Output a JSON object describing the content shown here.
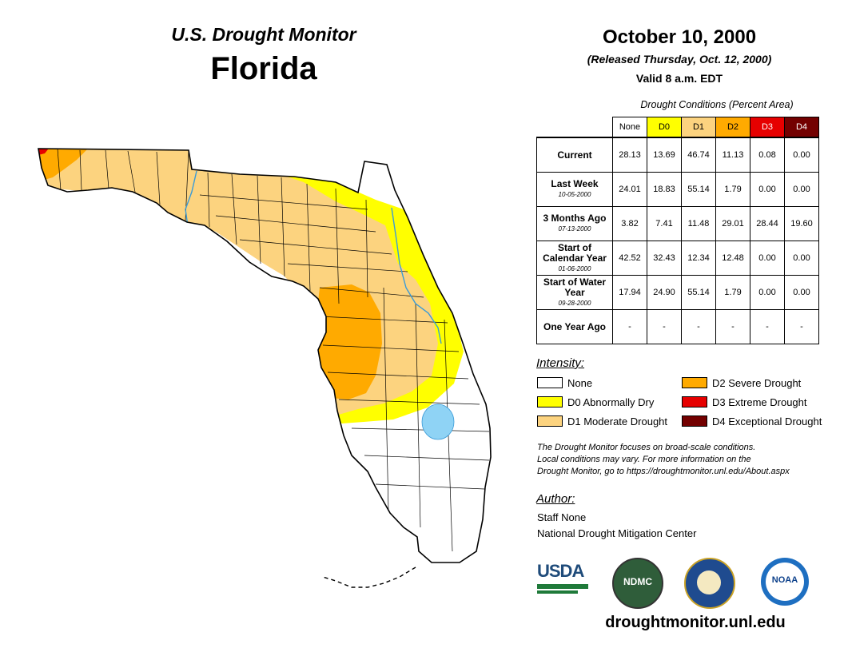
{
  "header": {
    "subtitle": "U.S. Drought Monitor",
    "state": "Florida",
    "date": "October 10, 2000",
    "released": "(Released Thursday, Oct. 12, 2000)",
    "valid": "Valid 8 a.m. EDT"
  },
  "table": {
    "caption": "Drought Conditions (Percent Area)",
    "columns": [
      "None",
      "D0",
      "D1",
      "D2",
      "D3",
      "D4"
    ],
    "rows": [
      {
        "label": "Current",
        "date": "",
        "values": [
          "28.13",
          "13.69",
          "46.74",
          "11.13",
          "0.08",
          "0.00"
        ]
      },
      {
        "label": "Last Week",
        "date": "10-05-2000",
        "values": [
          "24.01",
          "18.83",
          "55.14",
          "1.79",
          "0.00",
          "0.00"
        ]
      },
      {
        "label": "3 Months Ago",
        "date": "07-13-2000",
        "values": [
          "3.82",
          "7.41",
          "11.48",
          "29.01",
          "28.44",
          "19.60"
        ]
      },
      {
        "label": "Start of Calendar Year",
        "date": "01-06-2000",
        "values": [
          "42.52",
          "32.43",
          "12.34",
          "12.48",
          "0.00",
          "0.00"
        ]
      },
      {
        "label": "Start of Water Year",
        "date": "09-28-2000",
        "values": [
          "17.94",
          "24.90",
          "55.14",
          "1.79",
          "0.00",
          "0.00"
        ]
      },
      {
        "label": "One Year Ago",
        "date": "",
        "values": [
          "-",
          "-",
          "-",
          "-",
          "-",
          "-"
        ]
      }
    ]
  },
  "legend": {
    "title": "Intensity:",
    "items": [
      {
        "label": "None",
        "color": "#ffffff"
      },
      {
        "label": "D0 Abnormally Dry",
        "color": "#ffff00"
      },
      {
        "label": "D1 Moderate Drought",
        "color": "#fcd37f"
      },
      {
        "label": "D2 Severe Drought",
        "color": "#ffaa00"
      },
      {
        "label": "D3 Extreme Drought",
        "color": "#e60000"
      },
      {
        "label": "D4 Exceptional Drought",
        "color": "#730000"
      }
    ]
  },
  "note": {
    "line1": "The Drought Monitor focuses on broad-scale conditions.",
    "line2": "Local conditions may vary. For more information on the",
    "line3": "Drought Monitor, go to https://droughtmonitor.unl.edu/About.aspx"
  },
  "author": {
    "title": "Author:",
    "name": "Staff None",
    "org": "National Drought Mitigation Center"
  },
  "logos": {
    "usda": "USDA",
    "ndmc": "NDMC",
    "noaa": "NOAA"
  },
  "website": "droughtmonitor.unl.edu",
  "colors": {
    "water": "#8fd3f5",
    "river": "#3a9bd8"
  }
}
